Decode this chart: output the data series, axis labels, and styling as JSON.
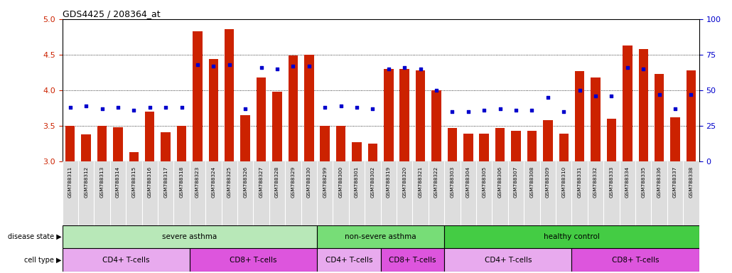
{
  "title": "GDS4425 / 208364_at",
  "samples": [
    "GSM788311",
    "GSM788312",
    "GSM788313",
    "GSM788314",
    "GSM788315",
    "GSM788316",
    "GSM788317",
    "GSM788318",
    "GSM788323",
    "GSM788324",
    "GSM788325",
    "GSM788326",
    "GSM788327",
    "GSM788328",
    "GSM788329",
    "GSM788330",
    "GSM788299",
    "GSM788300",
    "GSM788301",
    "GSM788302",
    "GSM788319",
    "GSM788320",
    "GSM788321",
    "GSM788322",
    "GSM788303",
    "GSM788304",
    "GSM788305",
    "GSM788306",
    "GSM788307",
    "GSM788308",
    "GSM788309",
    "GSM788310",
    "GSM788331",
    "GSM788332",
    "GSM788333",
    "GSM788334",
    "GSM788335",
    "GSM788336",
    "GSM788337",
    "GSM788338"
  ],
  "bar_values": [
    3.5,
    3.38,
    3.5,
    3.48,
    3.13,
    3.7,
    3.41,
    3.5,
    4.83,
    4.44,
    4.86,
    3.65,
    4.18,
    3.98,
    4.49,
    4.5,
    3.5,
    3.5,
    3.27,
    3.25,
    4.3,
    4.3,
    4.28,
    4.0,
    3.47,
    3.39,
    3.39,
    3.47,
    3.43,
    3.43,
    3.58,
    3.39,
    4.27,
    4.18,
    3.6,
    4.63,
    4.58,
    4.23,
    3.62,
    4.28
  ],
  "percentile_values": [
    38,
    39,
    37,
    38,
    36,
    38,
    38,
    38,
    68,
    67,
    68,
    37,
    66,
    65,
    67,
    67,
    38,
    39,
    38,
    37,
    65,
    66,
    65,
    50,
    35,
    35,
    36,
    37,
    36,
    36,
    45,
    35,
    50,
    46,
    46,
    66,
    65,
    47,
    37,
    47
  ],
  "ylim_left": [
    3.0,
    5.0
  ],
  "ylim_right": [
    0,
    100
  ],
  "yticks_left": [
    3.0,
    3.5,
    4.0,
    4.5,
    5.0
  ],
  "yticks_right": [
    0,
    25,
    50,
    75,
    100
  ],
  "bar_color": "#CC2200",
  "dot_color": "#0000CC",
  "bar_bottom": 3.0,
  "disease_state_groups": [
    {
      "label": "severe asthma",
      "start": 0,
      "end": 15,
      "color": "#b8e8b8"
    },
    {
      "label": "non-severe asthma",
      "start": 16,
      "end": 23,
      "color": "#77dd77"
    },
    {
      "label": "healthy control",
      "start": 24,
      "end": 39,
      "color": "#44cc44"
    }
  ],
  "cell_type_groups": [
    {
      "label": "CD4+ T-cells",
      "start": 0,
      "end": 7,
      "color": "#e8aaee"
    },
    {
      "label": "CD8+ T-cells",
      "start": 8,
      "end": 15,
      "color": "#dd55dd"
    },
    {
      "label": "CD4+ T-cells",
      "start": 16,
      "end": 19,
      "color": "#e8aaee"
    },
    {
      "label": "CD8+ T-cells",
      "start": 20,
      "end": 23,
      "color": "#dd55dd"
    },
    {
      "label": "CD4+ T-cells",
      "start": 24,
      "end": 31,
      "color": "#e8aaee"
    },
    {
      "label": "CD8+ T-cells",
      "start": 32,
      "end": 39,
      "color": "#dd55dd"
    }
  ],
  "grid_yticks": [
    3.5,
    4.0,
    4.5
  ]
}
